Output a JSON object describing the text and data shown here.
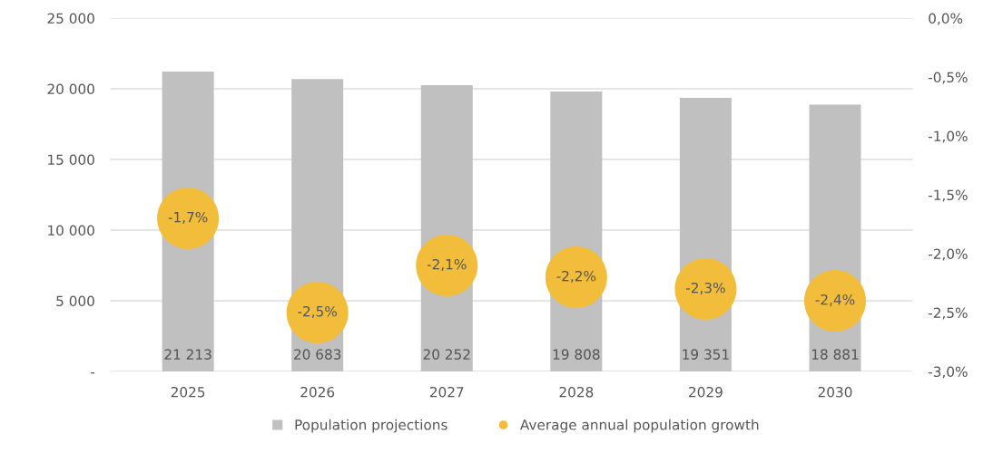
{
  "chart_data": {
    "type": "bar",
    "categories": [
      "2025",
      "2026",
      "2027",
      "2028",
      "2029",
      "2030"
    ],
    "series": [
      {
        "name": "Population projections",
        "color": "#c0c0c0",
        "values": [
          21213,
          20683,
          20252,
          19808,
          19351,
          18881
        ],
        "value_labels": [
          "21 213",
          "20 683",
          "20 252",
          "19 808",
          "19 351",
          "18 881"
        ]
      },
      {
        "name": "Average annual population growth",
        "type": "scatter",
        "axis": "y2",
        "color": "#f2bd3a",
        "marker": "circle",
        "values": [
          -1.7,
          -2.5,
          -2.1,
          -2.2,
          -2.3,
          -2.4
        ],
        "value_labels": [
          "-1,7%",
          "-2,5%",
          "-2,1%",
          "-2,2%",
          "-2,3%",
          "-2,4%"
        ]
      }
    ],
    "ylim": [
      0,
      25000
    ],
    "yticks": [
      {
        "value": 0,
        "label": "-"
      },
      {
        "value": 5000,
        "label": "5 000"
      },
      {
        "value": 10000,
        "label": "10 000"
      },
      {
        "value": 15000,
        "label": "15 000"
      },
      {
        "value": 20000,
        "label": "20 000"
      },
      {
        "value": 25000,
        "label": "25 000"
      }
    ],
    "y2lim": [
      -3.0,
      0.0
    ],
    "y2ticks": [
      {
        "value": -3.0,
        "label": "-3,0%"
      },
      {
        "value": -2.5,
        "label": "-2,5%"
      },
      {
        "value": -2.0,
        "label": "-2,0%"
      },
      {
        "value": -1.5,
        "label": "-1,5%"
      },
      {
        "value": -1.0,
        "label": "-1,0%"
      },
      {
        "value": -0.5,
        "label": "-0,5%"
      },
      {
        "value": 0.0,
        "label": "0,0%"
      }
    ],
    "grid": "y",
    "legend": "bottom"
  }
}
